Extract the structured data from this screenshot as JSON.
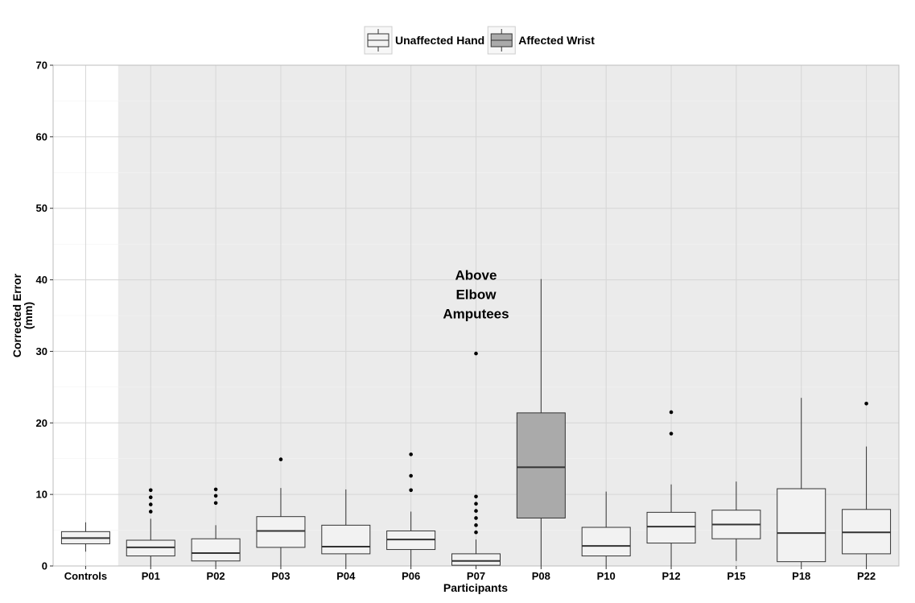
{
  "chart_data": {
    "type": "box",
    "xlabel": "Participants",
    "ylabel": [
      "Corrected Error",
      "(mm)"
    ],
    "ylim": [
      0,
      70
    ],
    "yticks": [
      0,
      10,
      20,
      30,
      40,
      50,
      60,
      70
    ],
    "grid": true,
    "legend": {
      "placement": "top",
      "entries": [
        {
          "label": "Unaffected Hand",
          "color": "#f2f2f2"
        },
        {
          "label": "Affected Wrist",
          "color": "#aaaaaa"
        }
      ]
    },
    "annotation": {
      "lines": [
        "Above",
        "Elbow",
        "Amputees"
      ],
      "x_category": "P07",
      "y": 38
    },
    "shaded_region": {
      "from_category": "P01",
      "to_category": "P22",
      "color": "#ebebeb"
    },
    "categories": [
      "Controls",
      "P01",
      "P02",
      "P03",
      "P04",
      "P06",
      "P07",
      "P08",
      "P10",
      "P12",
      "P15",
      "P18",
      "P22"
    ],
    "boxes": [
      {
        "category": "Controls",
        "group": "Unaffected Hand",
        "whisker_low": 2.0,
        "q1": 3.1,
        "median": 3.9,
        "q3": 4.8,
        "whisker_high": 6.1,
        "outliers": []
      },
      {
        "category": "P01",
        "group": "Unaffected Hand",
        "whisker_low": 0,
        "q1": 1.4,
        "median": 2.6,
        "q3": 3.6,
        "whisker_high": 6.6,
        "outliers": [
          7.6,
          8.6,
          9.6,
          10.6
        ]
      },
      {
        "category": "P02",
        "group": "Unaffected Hand",
        "whisker_low": 0,
        "q1": 0.7,
        "median": 1.8,
        "q3": 3.8,
        "whisker_high": 5.7,
        "outliers": [
          8.8,
          9.8,
          10.7
        ]
      },
      {
        "category": "P03",
        "group": "Unaffected Hand",
        "whisker_low": 0,
        "q1": 2.6,
        "median": 4.9,
        "q3": 6.9,
        "whisker_high": 10.9,
        "outliers": [
          14.9
        ]
      },
      {
        "category": "P04",
        "group": "Unaffected Hand",
        "whisker_low": 0,
        "q1": 1.7,
        "median": 2.7,
        "q3": 5.7,
        "whisker_high": 10.7,
        "outliers": []
      },
      {
        "category": "P06",
        "group": "Unaffected Hand",
        "whisker_low": 0,
        "q1": 2.3,
        "median": 3.7,
        "q3": 4.9,
        "whisker_high": 7.6,
        "outliers": [
          10.6,
          12.6,
          15.6
        ]
      },
      {
        "category": "P07",
        "group": "Unaffected Hand",
        "whisker_low": 0,
        "q1": 0.1,
        "median": 0.7,
        "q3": 1.7,
        "whisker_high": 3.7,
        "outliers": [
          4.7,
          5.7,
          6.7,
          7.7,
          8.7,
          9.7,
          29.7
        ]
      },
      {
        "category": "P08",
        "group": "Affected Wrist",
        "whisker_low": 0,
        "q1": 6.7,
        "median": 13.8,
        "q3": 21.4,
        "whisker_high": 40.1,
        "outliers": []
      },
      {
        "category": "P10",
        "group": "Unaffected Hand",
        "whisker_low": 0,
        "q1": 1.4,
        "median": 2.8,
        "q3": 5.4,
        "whisker_high": 10.4,
        "outliers": []
      },
      {
        "category": "P12",
        "group": "Unaffected Hand",
        "whisker_low": 0,
        "q1": 3.2,
        "median": 5.5,
        "q3": 7.5,
        "whisker_high": 11.4,
        "outliers": [
          18.5,
          21.5
        ]
      },
      {
        "category": "P15",
        "group": "Unaffected Hand",
        "whisker_low": 0.7,
        "q1": 3.8,
        "median": 5.8,
        "q3": 7.8,
        "whisker_high": 11.8,
        "outliers": []
      },
      {
        "category": "P18",
        "group": "Unaffected Hand",
        "whisker_low": 0,
        "q1": 0.6,
        "median": 4.6,
        "q3": 10.8,
        "whisker_high": 23.5,
        "outliers": []
      },
      {
        "category": "P22",
        "group": "Unaffected Hand",
        "whisker_low": 0,
        "q1": 1.7,
        "median": 4.7,
        "q3": 7.9,
        "whisker_high": 16.7,
        "outliers": [
          22.7
        ]
      }
    ]
  }
}
